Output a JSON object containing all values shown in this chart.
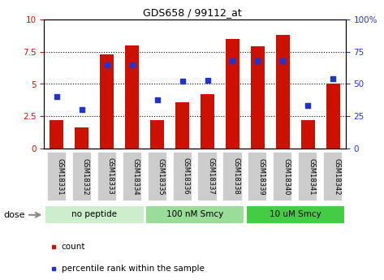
{
  "title": "GDS658 / 99112_at",
  "samples": [
    "GSM18331",
    "GSM18332",
    "GSM18333",
    "GSM18334",
    "GSM18335",
    "GSM18336",
    "GSM18337",
    "GSM18338",
    "GSM18339",
    "GSM18340",
    "GSM18341",
    "GSM18342"
  ],
  "bar_values": [
    2.2,
    1.6,
    7.3,
    8.0,
    2.2,
    3.6,
    4.2,
    8.5,
    7.9,
    8.8,
    2.2,
    5.0
  ],
  "dot_values": [
    40,
    30,
    65,
    65,
    38,
    52,
    53,
    68,
    68,
    68,
    33,
    54
  ],
  "bar_color": "#cc1100",
  "dot_color": "#2233cc",
  "ylim_left": [
    0,
    10
  ],
  "ylim_right": [
    0,
    100
  ],
  "yticks_left": [
    0,
    2.5,
    5.0,
    7.5,
    10
  ],
  "yticks_right": [
    0,
    25,
    50,
    75,
    100
  ],
  "yticklabels_right": [
    "0",
    "25",
    "50",
    "75",
    "100%"
  ],
  "groups": [
    {
      "label": "no peptide",
      "start": 0,
      "end": 3,
      "color": "#cceecc"
    },
    {
      "label": "100 nM Smcy",
      "start": 4,
      "end": 7,
      "color": "#99dd99"
    },
    {
      "label": "10 uM Smcy",
      "start": 8,
      "end": 11,
      "color": "#44cc44"
    }
  ],
  "dose_label": "dose",
  "legend_bar": "count",
  "legend_dot": "percentile rank within the sample",
  "tick_label_color_left": "#cc1100",
  "tick_label_color_right": "#2233cc",
  "bar_width": 0.55,
  "sample_box_color": "#cccccc",
  "title_fontsize": 9,
  "axis_fontsize": 7.5,
  "legend_fontsize": 7.5
}
